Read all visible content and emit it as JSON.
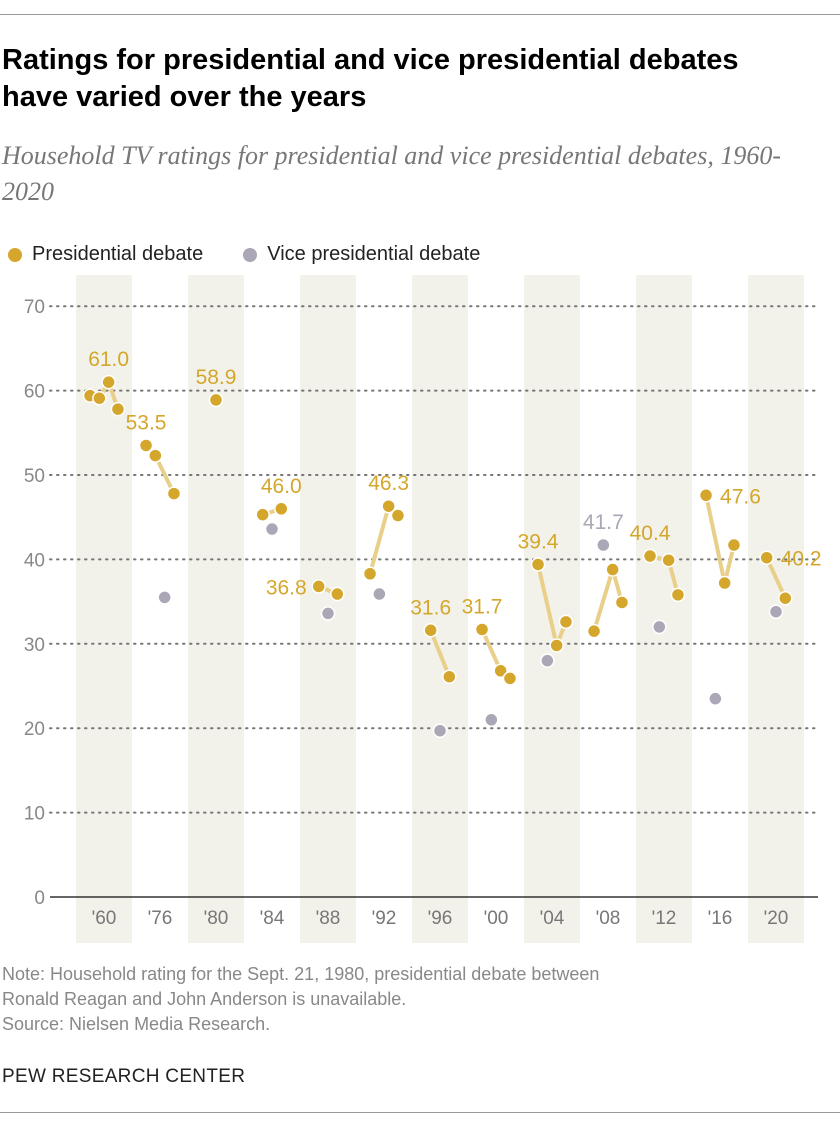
{
  "title": "Ratings for presidential and vice presidential debates have varied over the years",
  "subtitle": "Household TV ratings for presidential and vice presidential debates, 1960-2020",
  "legend": [
    {
      "label": "Presidential debate",
      "color": "#D4A72C"
    },
    {
      "label": "Vice presidential debate",
      "color": "#ABA7B6"
    }
  ],
  "notes": [
    "Note: Household rating for the Sept. 21, 1980, presidential debate between",
    "Ronald Reagan and John Anderson is unavailable.",
    "Source: Nielsen Media Research."
  ],
  "brand": "PEW RESEARCH CENTER",
  "chart_data": {
    "type": "scatter",
    "ylim": [
      0,
      70
    ],
    "yticks": [
      "0",
      "10",
      "20",
      "30",
      "40",
      "50",
      "60",
      "70"
    ],
    "grid": true,
    "legend_position": "top-left",
    "colors": {
      "presidential": "#D4A72C",
      "vp": "#ABA7B6",
      "line": "#E8CF8A",
      "band": "#F3F2EA"
    },
    "cycles": [
      {
        "label": "'60",
        "shaded": true,
        "events": [
          {
            "t": "P",
            "v": 59.4
          },
          {
            "t": "P",
            "v": 59.1
          },
          {
            "t": "P",
            "v": 61.0,
            "label": "61.0",
            "pos": "above"
          },
          {
            "t": "P",
            "v": 57.8
          }
        ]
      },
      {
        "label": "'76",
        "shaded": false,
        "events": [
          {
            "t": "P",
            "v": 53.5,
            "label": "53.5",
            "pos": "above"
          },
          {
            "t": "P",
            "v": 52.3
          },
          {
            "t": "V",
            "v": 35.5
          },
          {
            "t": "P",
            "v": 47.8
          }
        ]
      },
      {
        "label": "'80",
        "shaded": true,
        "events": [
          {
            "t": "P",
            "v": 58.9,
            "label": "58.9",
            "pos": "above"
          }
        ]
      },
      {
        "label": "'84",
        "shaded": false,
        "events": [
          {
            "t": "P",
            "v": 45.3
          },
          {
            "t": "V",
            "v": 43.6
          },
          {
            "t": "P",
            "v": 46.0,
            "label": "46.0",
            "pos": "above"
          }
        ]
      },
      {
        "label": "'88",
        "shaded": true,
        "events": [
          {
            "t": "P",
            "v": 36.8,
            "label": "36.8",
            "pos": "left"
          },
          {
            "t": "V",
            "v": 33.6
          },
          {
            "t": "P",
            "v": 35.9
          }
        ]
      },
      {
        "label": "'92",
        "shaded": false,
        "events": [
          {
            "t": "P",
            "v": 38.3
          },
          {
            "t": "V",
            "v": 35.9
          },
          {
            "t": "P",
            "v": 46.3,
            "label": "46.3",
            "pos": "above"
          },
          {
            "t": "P",
            "v": 45.2
          }
        ]
      },
      {
        "label": "'96",
        "shaded": true,
        "events": [
          {
            "t": "P",
            "v": 31.6,
            "label": "31.6",
            "pos": "above"
          },
          {
            "t": "V",
            "v": 19.7
          },
          {
            "t": "P",
            "v": 26.1
          }
        ]
      },
      {
        "label": "'00",
        "shaded": false,
        "events": [
          {
            "t": "P",
            "v": 31.7,
            "label": "31.7",
            "pos": "above"
          },
          {
            "t": "V",
            "v": 21.0
          },
          {
            "t": "P",
            "v": 26.8
          },
          {
            "t": "P",
            "v": 25.9
          }
        ]
      },
      {
        "label": "'04",
        "shaded": true,
        "events": [
          {
            "t": "P",
            "v": 39.4,
            "label": "39.4",
            "pos": "above"
          },
          {
            "t": "V",
            "v": 28.0
          },
          {
            "t": "P",
            "v": 29.8
          },
          {
            "t": "P",
            "v": 32.6
          }
        ]
      },
      {
        "label": "'08",
        "shaded": false,
        "events": [
          {
            "t": "P",
            "v": 31.5
          },
          {
            "t": "V",
            "v": 41.7,
            "label": "41.7",
            "pos": "above"
          },
          {
            "t": "P",
            "v": 38.8
          },
          {
            "t": "P",
            "v": 34.9
          }
        ]
      },
      {
        "label": "'12",
        "shaded": true,
        "events": [
          {
            "t": "P",
            "v": 40.4,
            "label": "40.4",
            "pos": "above"
          },
          {
            "t": "V",
            "v": 32.0
          },
          {
            "t": "P",
            "v": 39.9
          },
          {
            "t": "P",
            "v": 35.8
          }
        ]
      },
      {
        "label": "'16",
        "shaded": false,
        "events": [
          {
            "t": "P",
            "v": 47.6,
            "label": "47.6",
            "pos": "right"
          },
          {
            "t": "V",
            "v": 23.5
          },
          {
            "t": "P",
            "v": 37.2
          },
          {
            "t": "P",
            "v": 41.7
          }
        ]
      },
      {
        "label": "'20",
        "shaded": true,
        "events": [
          {
            "t": "P",
            "v": 40.2,
            "label": "40.2",
            "pos": "right"
          },
          {
            "t": "V",
            "v": 33.8
          },
          {
            "t": "P",
            "v": 35.4
          }
        ]
      }
    ]
  }
}
